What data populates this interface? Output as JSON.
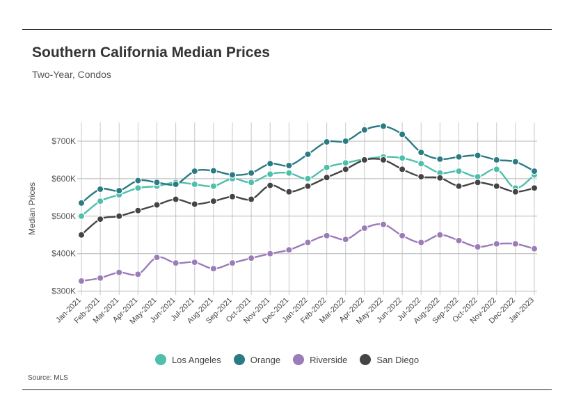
{
  "chart_data": {
    "type": "line",
    "title": "Southern California Median Prices",
    "subtitle": "Two-Year, Condos",
    "xlabel": "",
    "ylabel": "Median Prices",
    "ylim": [
      290000,
      750000
    ],
    "yticks": [
      300000,
      400000,
      500000,
      600000,
      700000
    ],
    "ytick_labels": [
      "$300K",
      "$400K",
      "$500K",
      "$600K",
      "$700K"
    ],
    "categories": [
      "Jan-2021",
      "Feb-2021",
      "Mar-2021",
      "Apr-2021",
      "May-2021",
      "Jun-2021",
      "Jul-2021",
      "Aug-2021",
      "Sep-2021",
      "Oct-2021",
      "Nov-2021",
      "Dec-2021",
      "Jan-2022",
      "Feb-2022",
      "Mar-2022",
      "Apr-2022",
      "May-2022",
      "Jun-2022",
      "Jul-2022",
      "Aug-2022",
      "Sep-2022",
      "Oct-2022",
      "Nov-2022",
      "Dec-2022",
      "Jan-2023"
    ],
    "series": [
      {
        "name": "Los Angeles",
        "color": "#4dbfab",
        "values": [
          500000,
          540000,
          557000,
          575000,
          580000,
          590000,
          585000,
          580000,
          600000,
          590000,
          612000,
          615000,
          600000,
          630000,
          642000,
          652000,
          658000,
          655000,
          640000,
          615000,
          620000,
          605000,
          625000,
          575000,
          610000
        ]
      },
      {
        "name": "Orange",
        "color": "#2a7b83",
        "values": [
          535000,
          572000,
          568000,
          595000,
          590000,
          585000,
          620000,
          621000,
          610000,
          615000,
          640000,
          635000,
          665000,
          698000,
          700000,
          730000,
          740000,
          718000,
          670000,
          652000,
          658000,
          662000,
          650000,
          645000,
          620000
        ]
      },
      {
        "name": "Riverside",
        "color": "#9b7bb8",
        "values": [
          327000,
          335000,
          350000,
          345000,
          390000,
          375000,
          377000,
          360000,
          375000,
          388000,
          400000,
          410000,
          430000,
          448000,
          438000,
          468000,
          478000,
          448000,
          430000,
          450000,
          435000,
          418000,
          426000,
          426000,
          413000
        ]
      },
      {
        "name": "San Diego",
        "color": "#444444",
        "values": [
          450000,
          492000,
          500000,
          515000,
          530000,
          545000,
          532000,
          540000,
          552000,
          545000,
          582000,
          565000,
          580000,
          603000,
          625000,
          650000,
          650000,
          625000,
          605000,
          602000,
          580000,
          590000,
          580000,
          565000,
          575000
        ]
      }
    ],
    "legend": "bottom-center",
    "grid": true
  },
  "source": "Source: MLS"
}
